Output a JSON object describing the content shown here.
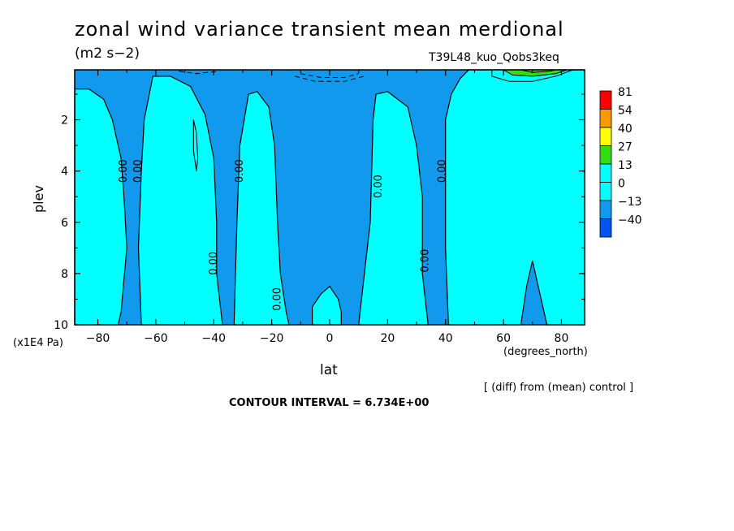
{
  "title": "zonal wind variance transient mean merdional",
  "units": "(m2 s−2)",
  "run_id": "T39L48_kuo_Qobs3keq",
  "diff_note": "[ (diff) from (mean) control ]",
  "contour_interval": "CONTOUR INTERVAL = 6.734E+00",
  "chart_data": {
    "type": "contour",
    "xlabel": "lat",
    "xunits": "(degrees_north)",
    "ylabel": "plev",
    "yunits": "(x1E4 Pa)",
    "xlim": [
      -88,
      88
    ],
    "ylim": [
      10,
      0.05
    ],
    "xticks": [
      -80,
      -60,
      -40,
      -20,
      0,
      20,
      40,
      60,
      80
    ],
    "xtick_labels": [
      "−80",
      "−60",
      "−40",
      "−20",
      "0",
      "20",
      "40",
      "60",
      "80"
    ],
    "yticks": [
      2,
      4,
      6,
      8,
      10
    ],
    "ytick_labels": [
      "2",
      "4",
      "6",
      "8",
      "10"
    ],
    "contour_interval": 6.734,
    "colorbar": {
      "levels": [
        81,
        54,
        40,
        27,
        13,
        0,
        -13,
        -40
      ],
      "labels": [
        "81",
        "54",
        "40",
        "27",
        "13",
        "0",
        "−13",
        "−40"
      ],
      "colors": [
        "#ff0000",
        "#ff9900",
        "#ffff00",
        "#33dd11",
        "#00ffff",
        "#00ffff",
        "#1199ee",
        "#0055ee"
      ]
    },
    "contour_labels": [
      {
        "text": "0.00",
        "lat": -70,
        "plev": 4.0
      },
      {
        "text": "0.00",
        "lat": -65,
        "plev": 4.0
      },
      {
        "text": "0.00",
        "lat": -30,
        "plev": 4.0
      },
      {
        "text": "0.00",
        "lat": 18,
        "plev": 4.6
      },
      {
        "text": "0.00",
        "lat": 40,
        "plev": 4.0
      },
      {
        "text": "0.00",
        "lat": -39,
        "plev": 7.6
      },
      {
        "text": "0.00",
        "lat": 34,
        "plev": 7.5
      },
      {
        "text": "0.00",
        "lat": -17,
        "plev": 9.0
      }
    ],
    "regions": [
      {
        "name": "positive-sh-80",
        "sign": "positive",
        "polygon": [
          [
            -88,
            0.8
          ],
          [
            -83,
            0.8
          ],
          [
            -78,
            1.2
          ],
          [
            -75,
            2.0
          ],
          [
            -72,
            3.5
          ],
          [
            -71,
            5.0
          ],
          [
            -70,
            7.0
          ],
          [
            -72,
            9.5
          ],
          [
            -73,
            10
          ],
          [
            -88,
            10
          ]
        ]
      },
      {
        "name": "positive-sh-50",
        "sign": "positive",
        "polygon": [
          [
            -65,
            10
          ],
          [
            -66,
            7.0
          ],
          [
            -65,
            4.0
          ],
          [
            -64,
            2.0
          ],
          [
            -61,
            0.3
          ],
          [
            -55,
            0.3
          ],
          [
            -48,
            0.7
          ],
          [
            -43,
            1.8
          ],
          [
            -40,
            3.5
          ],
          [
            -39,
            6.0
          ],
          [
            -39,
            8.0
          ],
          [
            -37,
            10
          ]
        ]
      },
      {
        "name": "positive-sh-25",
        "sign": "positive",
        "polygon": [
          [
            -33,
            10
          ],
          [
            -32,
            6.0
          ],
          [
            -31,
            3.0
          ],
          [
            -28,
            1.0
          ],
          [
            -25,
            0.9
          ],
          [
            -21,
            1.5
          ],
          [
            -19,
            3.0
          ],
          [
            -18,
            6.0
          ],
          [
            -17,
            8.0
          ],
          [
            -15,
            9.5
          ],
          [
            -14,
            10
          ]
        ]
      },
      {
        "name": "positive-eq",
        "sign": "positive",
        "polygon": [
          [
            -6,
            10
          ],
          [
            -6,
            9.3
          ],
          [
            -3,
            8.8
          ],
          [
            0,
            8.5
          ],
          [
            3,
            9.0
          ],
          [
            4,
            9.5
          ],
          [
            4,
            10
          ]
        ]
      },
      {
        "name": "positive-nh-20",
        "sign": "positive",
        "polygon": [
          [
            10,
            10
          ],
          [
            12,
            8.0
          ],
          [
            14,
            6.0
          ],
          [
            15,
            2.0
          ],
          [
            16,
            1.0
          ],
          [
            20,
            0.9
          ],
          [
            27,
            1.5
          ],
          [
            30,
            3.0
          ],
          [
            32,
            5.0
          ],
          [
            32,
            8.0
          ],
          [
            34,
            10
          ]
        ]
      },
      {
        "name": "positive-nh-65",
        "sign": "positive",
        "polygon": [
          [
            41,
            10
          ],
          [
            40,
            7.0
          ],
          [
            40,
            4.0
          ],
          [
            40,
            2.0
          ],
          [
            42,
            1.0
          ],
          [
            45,
            0.4
          ],
          [
            48,
            0.05
          ],
          [
            88,
            0.05
          ],
          [
            88,
            10
          ],
          [
            75,
            10
          ],
          [
            72,
            8.5
          ],
          [
            70,
            7.5
          ],
          [
            68,
            8.5
          ],
          [
            66,
            10
          ]
        ]
      }
    ],
    "high_contours_nh": [
      {
        "level": 13,
        "polygon": [
          [
            56,
            0.05
          ],
          [
            56,
            0.3
          ],
          [
            62,
            0.5
          ],
          [
            70,
            0.5
          ],
          [
            78,
            0.3
          ],
          [
            84,
            0.05
          ]
        ]
      },
      {
        "level": 27,
        "polygon": [
          [
            60,
            0.05
          ],
          [
            63,
            0.25
          ],
          [
            70,
            0.3
          ],
          [
            78,
            0.2
          ],
          [
            82,
            0.05
          ]
        ]
      },
      {
        "level": 40,
        "polygon": [
          [
            66,
            0.05
          ],
          [
            70,
            0.15
          ],
          [
            76,
            0.1
          ],
          [
            78,
            0.05
          ]
        ]
      }
    ]
  }
}
